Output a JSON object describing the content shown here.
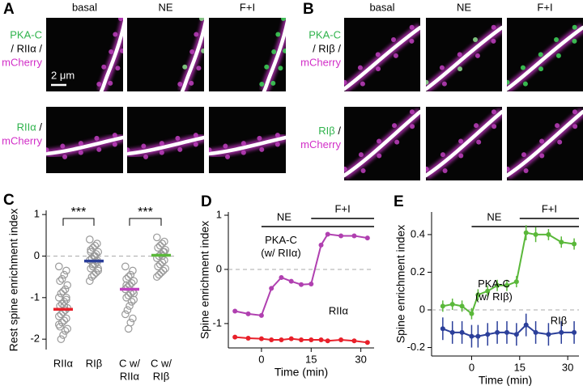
{
  "panels": {
    "A": {
      "letter": "A",
      "columns": [
        "basal",
        "NE",
        "F+I"
      ],
      "scale_bar": "2 μm",
      "rows": [
        {
          "label": [
            [
              {
                "text": "PKA-C",
                "color": "#2fb34c"
              }
            ],
            [
              {
                "text": "/ RIIα /",
                "color": "#000000"
              }
            ],
            [
              {
                "text": "mCherry",
                "color": "#d22fc8"
              }
            ]
          ]
        },
        {
          "label": [
            [
              {
                "text": "RIIα",
                "color": "#2fb34c"
              },
              {
                "text": " /",
                "color": "#000000"
              }
            ],
            [
              {
                "text": "mCherry",
                "color": "#d22fc8"
              }
            ]
          ]
        }
      ]
    },
    "B": {
      "letter": "B",
      "columns": [
        "basal",
        "NE",
        "F+I"
      ],
      "rows": [
        {
          "label": [
            [
              {
                "text": "PKA-C",
                "color": "#2fb34c"
              }
            ],
            [
              {
                "text": "/ RIβ /",
                "color": "#000000"
              }
            ],
            [
              {
                "text": "mCherry",
                "color": "#d22fc8"
              }
            ]
          ]
        },
        {
          "label": [
            [
              {
                "text": "RIβ",
                "color": "#2fb34c"
              },
              {
                "text": " /",
                "color": "#000000"
              }
            ],
            [
              {
                "text": "mCherry",
                "color": "#d22fc8"
              }
            ]
          ]
        }
      ]
    }
  },
  "chart_data": [
    {
      "type": "strip",
      "letter": "C",
      "ylabel": "Rest spine enrichment index",
      "categories": [
        [
          "RIIα"
        ],
        [
          "RIβ"
        ],
        [
          "C w/",
          "RIIα"
        ],
        [
          "C w/",
          "RIβ"
        ]
      ],
      "ylim": [
        -2.25,
        1.1
      ],
      "yticks": [
        -2,
        -1,
        0,
        1
      ],
      "hline": 0,
      "points": [
        [
          -0.25,
          -0.35,
          -0.45,
          -0.55,
          -0.6,
          -0.7,
          -0.8,
          -0.85,
          -0.9,
          -1.0,
          -1.05,
          -1.1,
          -1.15,
          -1.2,
          -1.25,
          -1.3,
          -1.35,
          -1.4,
          -1.45,
          -1.5,
          -1.55,
          -1.6,
          -1.7,
          -1.75,
          -1.8,
          -1.9,
          -2.0,
          -1.65,
          -1.0,
          -1.2
        ],
        [
          0.4,
          0.3,
          0.25,
          0.2,
          0.15,
          0.1,
          0.05,
          0.0,
          -0.05,
          -0.1,
          -0.15,
          -0.2,
          -0.25,
          -0.3,
          -0.35,
          -0.4,
          -0.45,
          -0.5,
          -0.6,
          -0.1,
          0.0,
          -0.2,
          0.1,
          -0.3
        ],
        [
          -0.25,
          -0.35,
          -0.45,
          -0.5,
          -0.55,
          -0.6,
          -0.65,
          -0.7,
          -0.75,
          -0.8,
          -0.85,
          -0.9,
          -0.95,
          -1.0,
          -1.05,
          -1.1,
          -1.2,
          -1.3,
          -1.4,
          -1.5,
          -1.6,
          -1.75,
          -0.7,
          -0.9
        ],
        [
          0.45,
          0.35,
          0.3,
          0.25,
          0.2,
          0.15,
          0.1,
          0.05,
          0.0,
          -0.05,
          -0.1,
          -0.15,
          -0.2,
          -0.25,
          -0.3,
          -0.35,
          -0.4,
          -0.45,
          -0.5,
          0.1,
          0.0
        ]
      ],
      "means": [
        -1.28,
        -0.12,
        -0.8,
        0.02
      ],
      "mean_colors": [
        "#e8202a",
        "#2b3f9a",
        "#c040c0",
        "#5ab83a"
      ],
      "point_color": "#9a9a9a",
      "annotations": [
        {
          "text": "***",
          "from": 0,
          "to": 1
        },
        {
          "text": "***",
          "from": 2,
          "to": 3
        }
      ]
    },
    {
      "type": "line",
      "letter": "D",
      "ylabel": "Spine enrichment index",
      "xlabel": "Time (min)",
      "xlim": [
        -10,
        34
      ],
      "xticks": [
        0,
        15,
        30
      ],
      "ylim": [
        -1.45,
        1.06
      ],
      "yticks": [
        -1,
        0,
        1
      ],
      "hline": 0,
      "periods": [
        {
          "label": "NE",
          "start": 0
        },
        {
          "label": "F+I",
          "start": 15
        }
      ],
      "x": [
        -8,
        -4,
        0,
        3,
        6,
        9,
        12,
        15,
        18,
        20,
        24,
        28,
        32
      ],
      "series": [
        {
          "name": "PKA-C (w/ RIIα)",
          "color": "#b040b0",
          "values": [
            -0.77,
            -0.82,
            -0.85,
            -0.35,
            -0.15,
            -0.22,
            -0.28,
            -0.27,
            0.45,
            0.65,
            0.62,
            0.62,
            0.58
          ]
        },
        {
          "name": "RIIα",
          "color": "#e8202a",
          "values": [
            -1.25,
            -1.27,
            -1.28,
            -1.3,
            -1.3,
            -1.28,
            -1.3,
            -1.3,
            -1.3,
            -1.32,
            -1.3,
            -1.32,
            -1.35
          ]
        }
      ]
    },
    {
      "type": "line",
      "letter": "E",
      "ylabel": "Spine enrichment index",
      "xlabel": "Time (min)",
      "xlim": [
        -12.5,
        33.5
      ],
      "xticks": [
        0,
        15,
        30
      ],
      "ylim": [
        -0.245,
        0.52
      ],
      "yticks": [
        -0.2,
        0,
        0.2,
        0.4
      ],
      "hline": 0,
      "periods": [
        {
          "label": "NE",
          "start": 0
        },
        {
          "label": "F+I",
          "start": 15
        }
      ],
      "x": [
        -9,
        -6,
        -3,
        0,
        2,
        5,
        8,
        11,
        14,
        17,
        20,
        24,
        28,
        32
      ],
      "series": [
        {
          "name": "PKA-C (w/ RIβ)",
          "color": "#5ab83a",
          "values": [
            0.02,
            0.03,
            0.02,
            -0.02,
            0.08,
            0.1,
            0.13,
            0.13,
            0.15,
            0.41,
            0.4,
            0.4,
            0.36,
            0.35
          ],
          "errors": [
            0.03,
            0.03,
            0.03,
            0.03,
            0.03,
            0.03,
            0.03,
            0.03,
            0.03,
            0.04,
            0.04,
            0.03,
            0.03,
            0.03
          ]
        },
        {
          "name": "RIβ",
          "color": "#2b3f9a",
          "values": [
            -0.1,
            -0.12,
            -0.12,
            -0.14,
            -0.14,
            -0.13,
            -0.12,
            -0.12,
            -0.13,
            -0.08,
            -0.12,
            -0.13,
            -0.12,
            -0.12
          ],
          "errors": [
            0.06,
            0.06,
            0.06,
            0.06,
            0.06,
            0.06,
            0.06,
            0.06,
            0.06,
            0.06,
            0.06,
            0.06,
            0.06,
            0.06
          ]
        }
      ]
    }
  ]
}
